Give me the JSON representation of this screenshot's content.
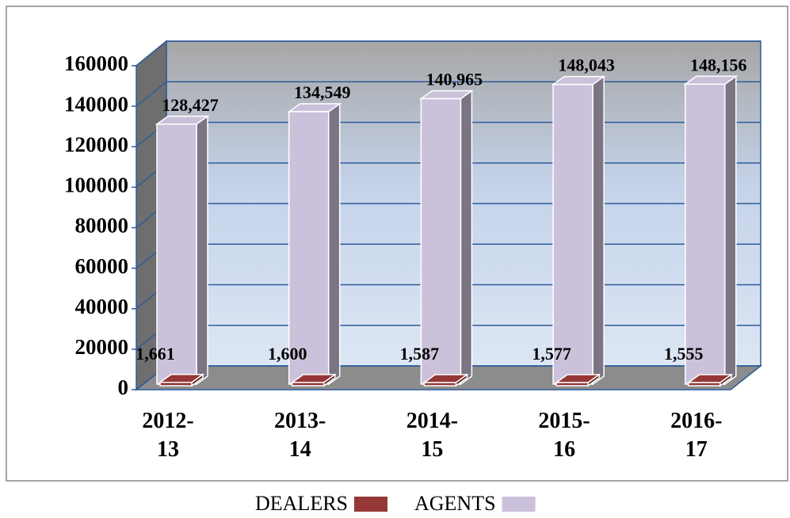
{
  "chart_data": {
    "type": "bar3d",
    "categories": [
      "2012-13",
      "2013-14",
      "2014-15",
      "2015-16",
      "2016-17"
    ],
    "series": [
      {
        "name": "DEALERS",
        "color": "#953735",
        "values": [
          1661,
          1600,
          1587,
          1577,
          1555
        ],
        "value_labels": [
          "1,661",
          "1,600",
          "1,587",
          "1,577",
          "1,555"
        ]
      },
      {
        "name": "AGENTS",
        "color": "#ccc1da",
        "values": [
          128427,
          134549,
          140965,
          148043,
          148156
        ],
        "value_labels": [
          "128,427",
          "134,549",
          "140,965",
          "148,043",
          "148,156"
        ]
      }
    ],
    "ylim": [
      0,
      160000
    ],
    "yticks": [
      0,
      20000,
      40000,
      60000,
      80000,
      100000,
      120000,
      140000,
      160000
    ],
    "grid": true,
    "legend": "bottom"
  }
}
